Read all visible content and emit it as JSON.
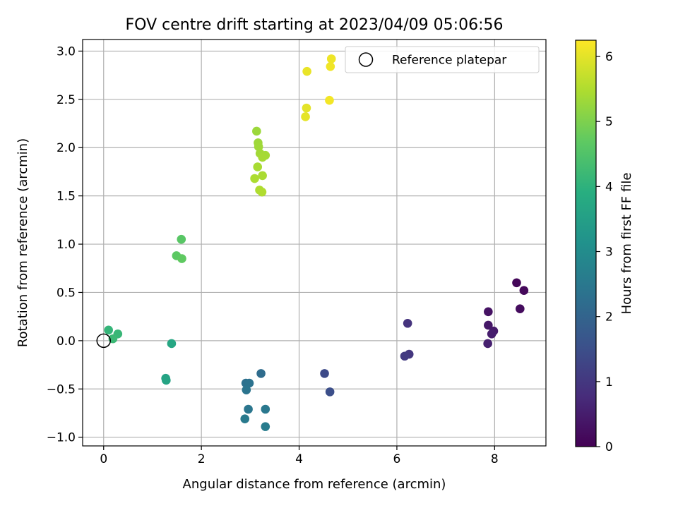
{
  "chart_data": {
    "type": "scatter",
    "title": "FOV centre drift starting at 2023/04/09 05:06:56",
    "xlabel": "Angular distance from reference (arcmin)",
    "ylabel": "Rotation from reference (arcmin)",
    "colorbar_label": "Hours from first FF file",
    "colormap": "viridis",
    "xlim": [
      -0.43,
      9.05
    ],
    "ylim": [
      -1.09,
      3.12
    ],
    "xticks": [
      "0",
      "2",
      "4",
      "6",
      "8"
    ],
    "xtick_values": [
      0,
      2,
      4,
      6,
      8
    ],
    "yticks": [
      "3.0",
      "2.5",
      "2.0",
      "1.5",
      "1.0",
      "0.5",
      "0.0",
      "−0.5",
      "−1.0"
    ],
    "ytick_values": [
      3.0,
      2.5,
      2.0,
      1.5,
      1.0,
      0.5,
      0.0,
      -0.5,
      -1.0
    ],
    "colorbar_range": [
      0,
      6.25
    ],
    "colorbar_ticks": [
      "0",
      "1",
      "2",
      "3",
      "4",
      "5",
      "6"
    ],
    "colorbar_tick_values": [
      0,
      1,
      2,
      3,
      4,
      5,
      6
    ],
    "grid": true,
    "legend": {
      "placement": "top-right",
      "label": "Reference platepar",
      "marker": "hollow-circle"
    },
    "reference_point": {
      "x": 0.0,
      "y": 0.0
    },
    "points": [
      {
        "x": 8.45,
        "y": 0.6,
        "c": 0.1
      },
      {
        "x": 8.6,
        "y": 0.52,
        "c": 0.15
      },
      {
        "x": 8.52,
        "y": 0.33,
        "c": 0.2
      },
      {
        "x": 7.87,
        "y": 0.3,
        "c": 0.3
      },
      {
        "x": 7.87,
        "y": 0.16,
        "c": 0.4
      },
      {
        "x": 7.98,
        "y": 0.1,
        "c": 0.45
      },
      {
        "x": 7.94,
        "y": 0.07,
        "c": 0.5
      },
      {
        "x": 7.86,
        "y": -0.03,
        "c": 0.55
      },
      {
        "x": 6.22,
        "y": 0.18,
        "c": 0.9
      },
      {
        "x": 6.25,
        "y": -0.14,
        "c": 1.0
      },
      {
        "x": 6.16,
        "y": -0.16,
        "c": 1.05
      },
      {
        "x": 4.52,
        "y": -0.34,
        "c": 1.4
      },
      {
        "x": 4.63,
        "y": -0.53,
        "c": 1.5
      },
      {
        "x": 3.22,
        "y": -0.34,
        "c": 2.2
      },
      {
        "x": 2.91,
        "y": -0.44,
        "c": 2.3
      },
      {
        "x": 2.98,
        "y": -0.44,
        "c": 2.35
      },
      {
        "x": 2.92,
        "y": -0.51,
        "c": 2.4
      },
      {
        "x": 2.96,
        "y": -0.71,
        "c": 2.45
      },
      {
        "x": 3.31,
        "y": -0.71,
        "c": 2.5
      },
      {
        "x": 2.89,
        "y": -0.81,
        "c": 2.55
      },
      {
        "x": 3.31,
        "y": -0.89,
        "c": 2.6
      },
      {
        "x": 1.27,
        "y": -0.39,
        "c": 3.6
      },
      {
        "x": 1.28,
        "y": -0.41,
        "c": 3.65
      },
      {
        "x": 1.39,
        "y": -0.03,
        "c": 3.7
      },
      {
        "x": 0.1,
        "y": 0.11,
        "c": 4.1
      },
      {
        "x": 0.29,
        "y": 0.07,
        "c": 4.15
      },
      {
        "x": 0.19,
        "y": 0.02,
        "c": 4.2
      },
      {
        "x": 1.59,
        "y": 1.05,
        "c": 4.6
      },
      {
        "x": 1.49,
        "y": 0.88,
        "c": 4.65
      },
      {
        "x": 1.6,
        "y": 0.85,
        "c": 4.7
      },
      {
        "x": 3.13,
        "y": 2.17,
        "c": 5.3
      },
      {
        "x": 3.16,
        "y": 2.05,
        "c": 5.32
      },
      {
        "x": 3.17,
        "y": 2.01,
        "c": 5.34
      },
      {
        "x": 3.2,
        "y": 1.94,
        "c": 5.36
      },
      {
        "x": 3.31,
        "y": 1.92,
        "c": 5.38
      },
      {
        "x": 3.25,
        "y": 1.9,
        "c": 5.4
      },
      {
        "x": 3.15,
        "y": 1.8,
        "c": 5.42
      },
      {
        "x": 3.25,
        "y": 1.71,
        "c": 5.44
      },
      {
        "x": 3.09,
        "y": 1.68,
        "c": 5.46
      },
      {
        "x": 3.19,
        "y": 1.56,
        "c": 5.48
      },
      {
        "x": 3.24,
        "y": 1.54,
        "c": 5.5
      },
      {
        "x": 4.66,
        "y": 2.92,
        "c": 6.1
      },
      {
        "x": 4.64,
        "y": 2.84,
        "c": 6.12
      },
      {
        "x": 4.16,
        "y": 2.79,
        "c": 6.05
      },
      {
        "x": 4.62,
        "y": 2.49,
        "c": 6.15
      },
      {
        "x": 4.15,
        "y": 2.41,
        "c": 6.0
      },
      {
        "x": 4.13,
        "y": 2.32,
        "c": 6.02
      }
    ]
  }
}
